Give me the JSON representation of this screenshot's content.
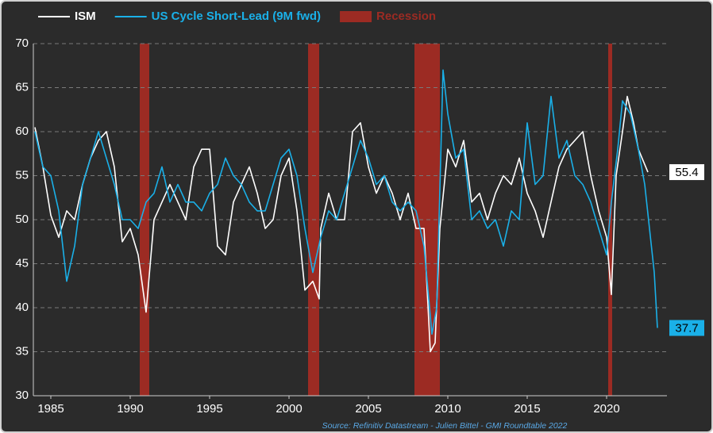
{
  "chart_data": {
    "type": "line",
    "source": "Source: Refinitiv Datastream - Julien Bittel - GMI Roundtable 2022",
    "xlim": [
      1983.9,
      2023.8
    ],
    "xticks": [
      1985,
      1990,
      1995,
      2000,
      2005,
      2010,
      2015,
      2020
    ],
    "ylim": [
      30,
      70
    ],
    "yticks": [
      30,
      35,
      40,
      45,
      50,
      55,
      60,
      65,
      70
    ],
    "grid": true,
    "legend": "top-left",
    "recessions": {
      "name": "Recession",
      "color": "#9c2b23",
      "spans": [
        [
          1990.6,
          1991.2
        ],
        [
          2001.2,
          2001.9
        ],
        [
          2007.9,
          2009.5
        ],
        [
          2020.1,
          2020.35
        ]
      ]
    },
    "series": [
      {
        "name": "ISM",
        "color": "#ffffff",
        "end_label_box": "#ffffff",
        "end_label_text": "#000000",
        "x": [
          1984.0,
          1984.5,
          1985.0,
          1985.5,
          1986.0,
          1986.5,
          1987.0,
          1987.5,
          1988.0,
          1988.5,
          1989.0,
          1989.5,
          1990.0,
          1990.5,
          1991.0,
          1991.5,
          1992.0,
          1992.5,
          1993.0,
          1993.5,
          1994.0,
          1994.5,
          1995.0,
          1995.5,
          1996.0,
          1996.5,
          1997.0,
          1997.5,
          1998.0,
          1998.5,
          1999.0,
          1999.5,
          2000.0,
          2000.5,
          2001.0,
          2001.5,
          2001.9,
          2002.0,
          2002.5,
          2003.0,
          2003.5,
          2004.0,
          2004.5,
          2005.0,
          2005.5,
          2006.0,
          2006.5,
          2007.0,
          2007.5,
          2008.0,
          2008.5,
          2008.9,
          2009.2,
          2009.5,
          2010.0,
          2010.5,
          2011.0,
          2011.5,
          2012.0,
          2012.5,
          2013.0,
          2013.5,
          2014.0,
          2014.5,
          2015.0,
          2015.5,
          2016.0,
          2016.5,
          2017.0,
          2017.5,
          2018.0,
          2018.5,
          2019.0,
          2019.5,
          2020.0,
          2020.3,
          2020.6,
          2021.0,
          2021.3,
          2021.7,
          2022.0,
          2022.6
        ],
        "values": [
          60.5,
          56,
          50.5,
          48,
          51,
          50,
          54,
          57,
          59,
          60,
          56,
          47.5,
          49,
          46,
          39.5,
          50,
          52,
          54,
          52,
          50,
          56,
          58,
          58,
          47,
          46,
          52,
          54,
          56,
          53,
          49,
          50,
          55,
          57,
          51,
          42,
          43,
          41,
          49,
          53,
          50,
          50,
          60,
          61,
          56,
          53,
          55,
          53,
          50,
          53,
          49,
          49,
          35,
          36,
          49,
          58,
          56,
          59,
          52,
          53,
          50,
          53,
          55,
          54,
          57,
          53,
          51,
          48,
          52,
          56,
          58,
          59,
          60,
          55,
          51,
          48,
          41.5,
          55,
          60,
          64,
          61,
          58,
          55.4
        ]
      },
      {
        "name": "US Cycle Short-Lead (9M fwd)",
        "color": "#1ab0e8",
        "end_label_box": "#1ab0e8",
        "end_label_text": "#000000",
        "x": [
          1984.0,
          1984.5,
          1985.0,
          1985.5,
          1986.0,
          1986.5,
          1987.0,
          1987.5,
          1988.0,
          1988.5,
          1989.0,
          1989.5,
          1990.0,
          1990.5,
          1991.0,
          1991.5,
          1992.0,
          1992.5,
          1993.0,
          1993.5,
          1994.0,
          1994.5,
          1995.0,
          1995.5,
          1996.0,
          1996.5,
          1997.0,
          1997.5,
          1998.0,
          1998.5,
          1999.0,
          1999.5,
          2000.0,
          2000.5,
          2001.0,
          2001.5,
          2002.0,
          2002.5,
          2003.0,
          2003.5,
          2004.0,
          2004.5,
          2005.0,
          2005.5,
          2006.0,
          2006.5,
          2007.0,
          2007.5,
          2008.0,
          2008.5,
          2009.0,
          2009.3,
          2009.7,
          2010.0,
          2010.5,
          2011.0,
          2011.5,
          2012.0,
          2012.5,
          2013.0,
          2013.5,
          2014.0,
          2014.5,
          2015.0,
          2015.5,
          2016.0,
          2016.5,
          2017.0,
          2017.5,
          2018.0,
          2018.5,
          2019.0,
          2019.5,
          2020.0,
          2020.3,
          2020.7,
          2021.0,
          2021.5,
          2022.0,
          2022.4,
          2022.7,
          2023.0,
          2023.2
        ],
        "values": [
          60,
          56,
          55,
          51,
          43,
          47,
          54,
          57,
          60,
          57,
          54,
          50,
          50,
          49,
          52,
          53,
          56,
          52,
          54,
          52,
          52,
          51,
          53,
          54,
          57,
          55,
          54,
          52,
          51,
          51,
          54,
          57,
          58,
          55,
          49,
          44,
          48,
          51,
          50,
          53,
          56,
          59,
          57,
          54,
          55,
          52,
          51,
          52,
          51,
          47,
          37,
          40,
          67,
          62,
          57,
          58,
          50,
          51,
          49,
          50,
          47,
          51,
          50,
          61,
          54,
          55,
          64,
          57,
          59,
          55,
          54,
          52,
          49,
          46,
          52,
          58,
          63.5,
          62,
          58,
          54,
          49,
          44,
          37.7
        ]
      }
    ]
  }
}
